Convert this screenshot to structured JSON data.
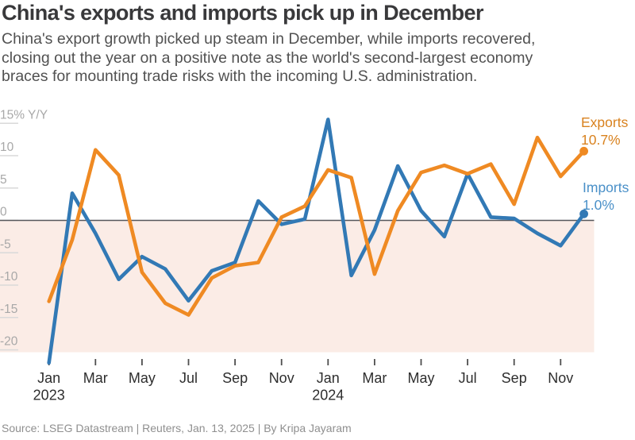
{
  "header": {
    "title": "China's exports and imports pick up in December",
    "subtitle": "China's export growth picked up steam in December, while imports recovered,\nclosing out the year on a positive note as the world's second-largest economy\nbraces for mounting trade risks with the incoming U.S. administration."
  },
  "footer": {
    "source": "Source: LSEG Datastream | Reuters, Jan. 13, 2025 | By Kripa Jayaram"
  },
  "chart_data": {
    "type": "line",
    "unit": "% change year-on-year (Y/Y)",
    "x": [
      "Jan 2023",
      "Feb 2023",
      "Mar 2023",
      "Apr 2023",
      "May 2023",
      "Jun 2023",
      "Jul 2023",
      "Aug 2023",
      "Sep 2023",
      "Oct 2023",
      "Nov 2023",
      "Dec 2023",
      "Jan 2024",
      "Feb 2024",
      "Mar 2024",
      "Apr 2024",
      "May 2024",
      "Jun 2024",
      "Jul 2024",
      "Aug 2024",
      "Sep 2024",
      "Oct 2024",
      "Nov 2024",
      "Dec 2024"
    ],
    "series": [
      {
        "name": "Exports",
        "end_label": "10.7%",
        "color": "#ef8a23",
        "label_color": "#d9821f",
        "values": [
          -12.5,
          -3.0,
          10.9,
          7.0,
          -8.0,
          -12.8,
          -14.6,
          -8.9,
          -7.0,
          -6.5,
          0.5,
          2.2,
          7.8,
          6.6,
          -8.3,
          1.5,
          7.4,
          8.5,
          7.2,
          8.7,
          2.5,
          12.8,
          6.8,
          10.7
        ]
      },
      {
        "name": "Imports",
        "end_label": "1.0%",
        "color": "#3279b5",
        "label_color": "#4a90c8",
        "values": [
          -22.0,
          4.2,
          -2.0,
          -9.1,
          -5.6,
          -7.5,
          -12.4,
          -7.8,
          -6.5,
          3.0,
          -0.6,
          0.2,
          15.6,
          -8.5,
          -1.5,
          8.4,
          1.5,
          -2.5,
          7.2,
          0.5,
          0.3,
          -2.0,
          -3.9,
          1.0
        ]
      }
    ],
    "y_axis": {
      "tick_values": [
        15,
        10,
        5,
        0,
        -5,
        -10,
        -15,
        -20
      ],
      "tick_labels": [
        "15% Y/Y",
        "10",
        "5",
        "0",
        "-5",
        "-10",
        "-15",
        "-20"
      ],
      "range": [
        -23,
        16.5
      ],
      "gridlines": false
    },
    "x_axis": {
      "ticks": [
        {
          "label": "Jan",
          "year": "2023",
          "month_index": 0
        },
        {
          "label": "Mar",
          "month_index": 2
        },
        {
          "label": "May",
          "month_index": 4
        },
        {
          "label": "Jul",
          "month_index": 6
        },
        {
          "label": "Sep",
          "month_index": 8
        },
        {
          "label": "Nov",
          "month_index": 10
        },
        {
          "label": "Jan",
          "year": "2024",
          "month_index": 12
        },
        {
          "label": "Mar",
          "month_index": 14
        },
        {
          "label": "May",
          "month_index": 16
        },
        {
          "label": "Jul",
          "month_index": 18
        },
        {
          "label": "Sep",
          "month_index": 20
        },
        {
          "label": "Nov",
          "month_index": 22
        }
      ]
    },
    "styles": {
      "negative_area": "#fbece6",
      "zero_line": "#56575b",
      "y_tick": "#d9d9d9",
      "y_label": "#a8a8a8",
      "x_tick": "#4e4e4e",
      "x_label": "#2e2e2e"
    },
    "legend_position": "end-of-line labels, right side"
  }
}
